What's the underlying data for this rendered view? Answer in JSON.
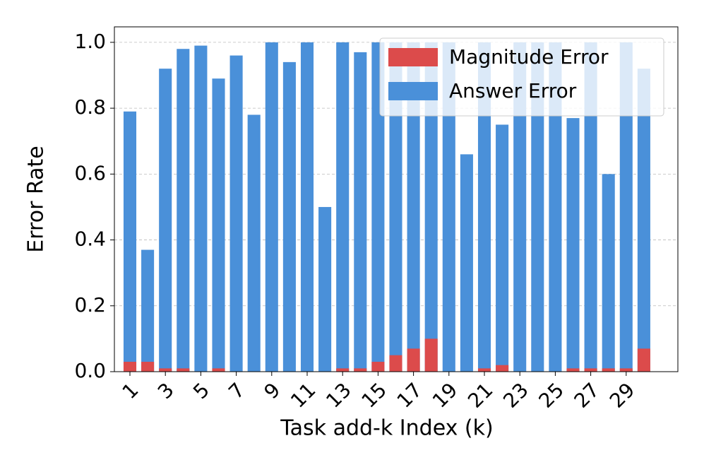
{
  "chart_data": {
    "type": "bar",
    "overlay": true,
    "x_label": "Task add-k Index (k)",
    "y_label": "Error Rate",
    "categories": [
      "1",
      null,
      "3",
      null,
      "5",
      null,
      "7",
      null,
      "9",
      null,
      "11",
      null,
      "13",
      null,
      "15",
      null,
      "17",
      null,
      "19",
      null,
      "21",
      null,
      "23",
      null,
      "25",
      null,
      "27",
      null,
      "29",
      null
    ],
    "series": [
      {
        "name": "Magnitude Error",
        "color": "#dc4b4b",
        "values": [
          0.03,
          0.03,
          0.01,
          0.01,
          0,
          0.01,
          0,
          0,
          0,
          0,
          0,
          0,
          0.01,
          0.01,
          0.03,
          0.05,
          0.07,
          0.1,
          0,
          0,
          0.01,
          0.02,
          0,
          0,
          0,
          0.01,
          0.01,
          0.01,
          0.01,
          0.07
        ]
      },
      {
        "name": "Answer Error",
        "color": "#4a90d9",
        "values": [
          0.79,
          0.37,
          0.92,
          0.98,
          0.99,
          0.89,
          0.96,
          0.78,
          1.0,
          0.94,
          1.0,
          0.5,
          1.0,
          0.97,
          1.0,
          1.0,
          1.0,
          1.0,
          1.0,
          0.66,
          1.0,
          0.75,
          1.0,
          1.0,
          1.0,
          0.77,
          1.0,
          0.6,
          1.0,
          0.92
        ]
      }
    ],
    "ylim": [
      0,
      1.047
    ],
    "yticks": [
      {
        "value": 0,
        "label": "0.0"
      },
      0.2,
      0.4,
      0.6,
      0.8,
      {
        "value": 1,
        "label": "1.0"
      }
    ],
    "grid": true,
    "legend": "upper right"
  }
}
